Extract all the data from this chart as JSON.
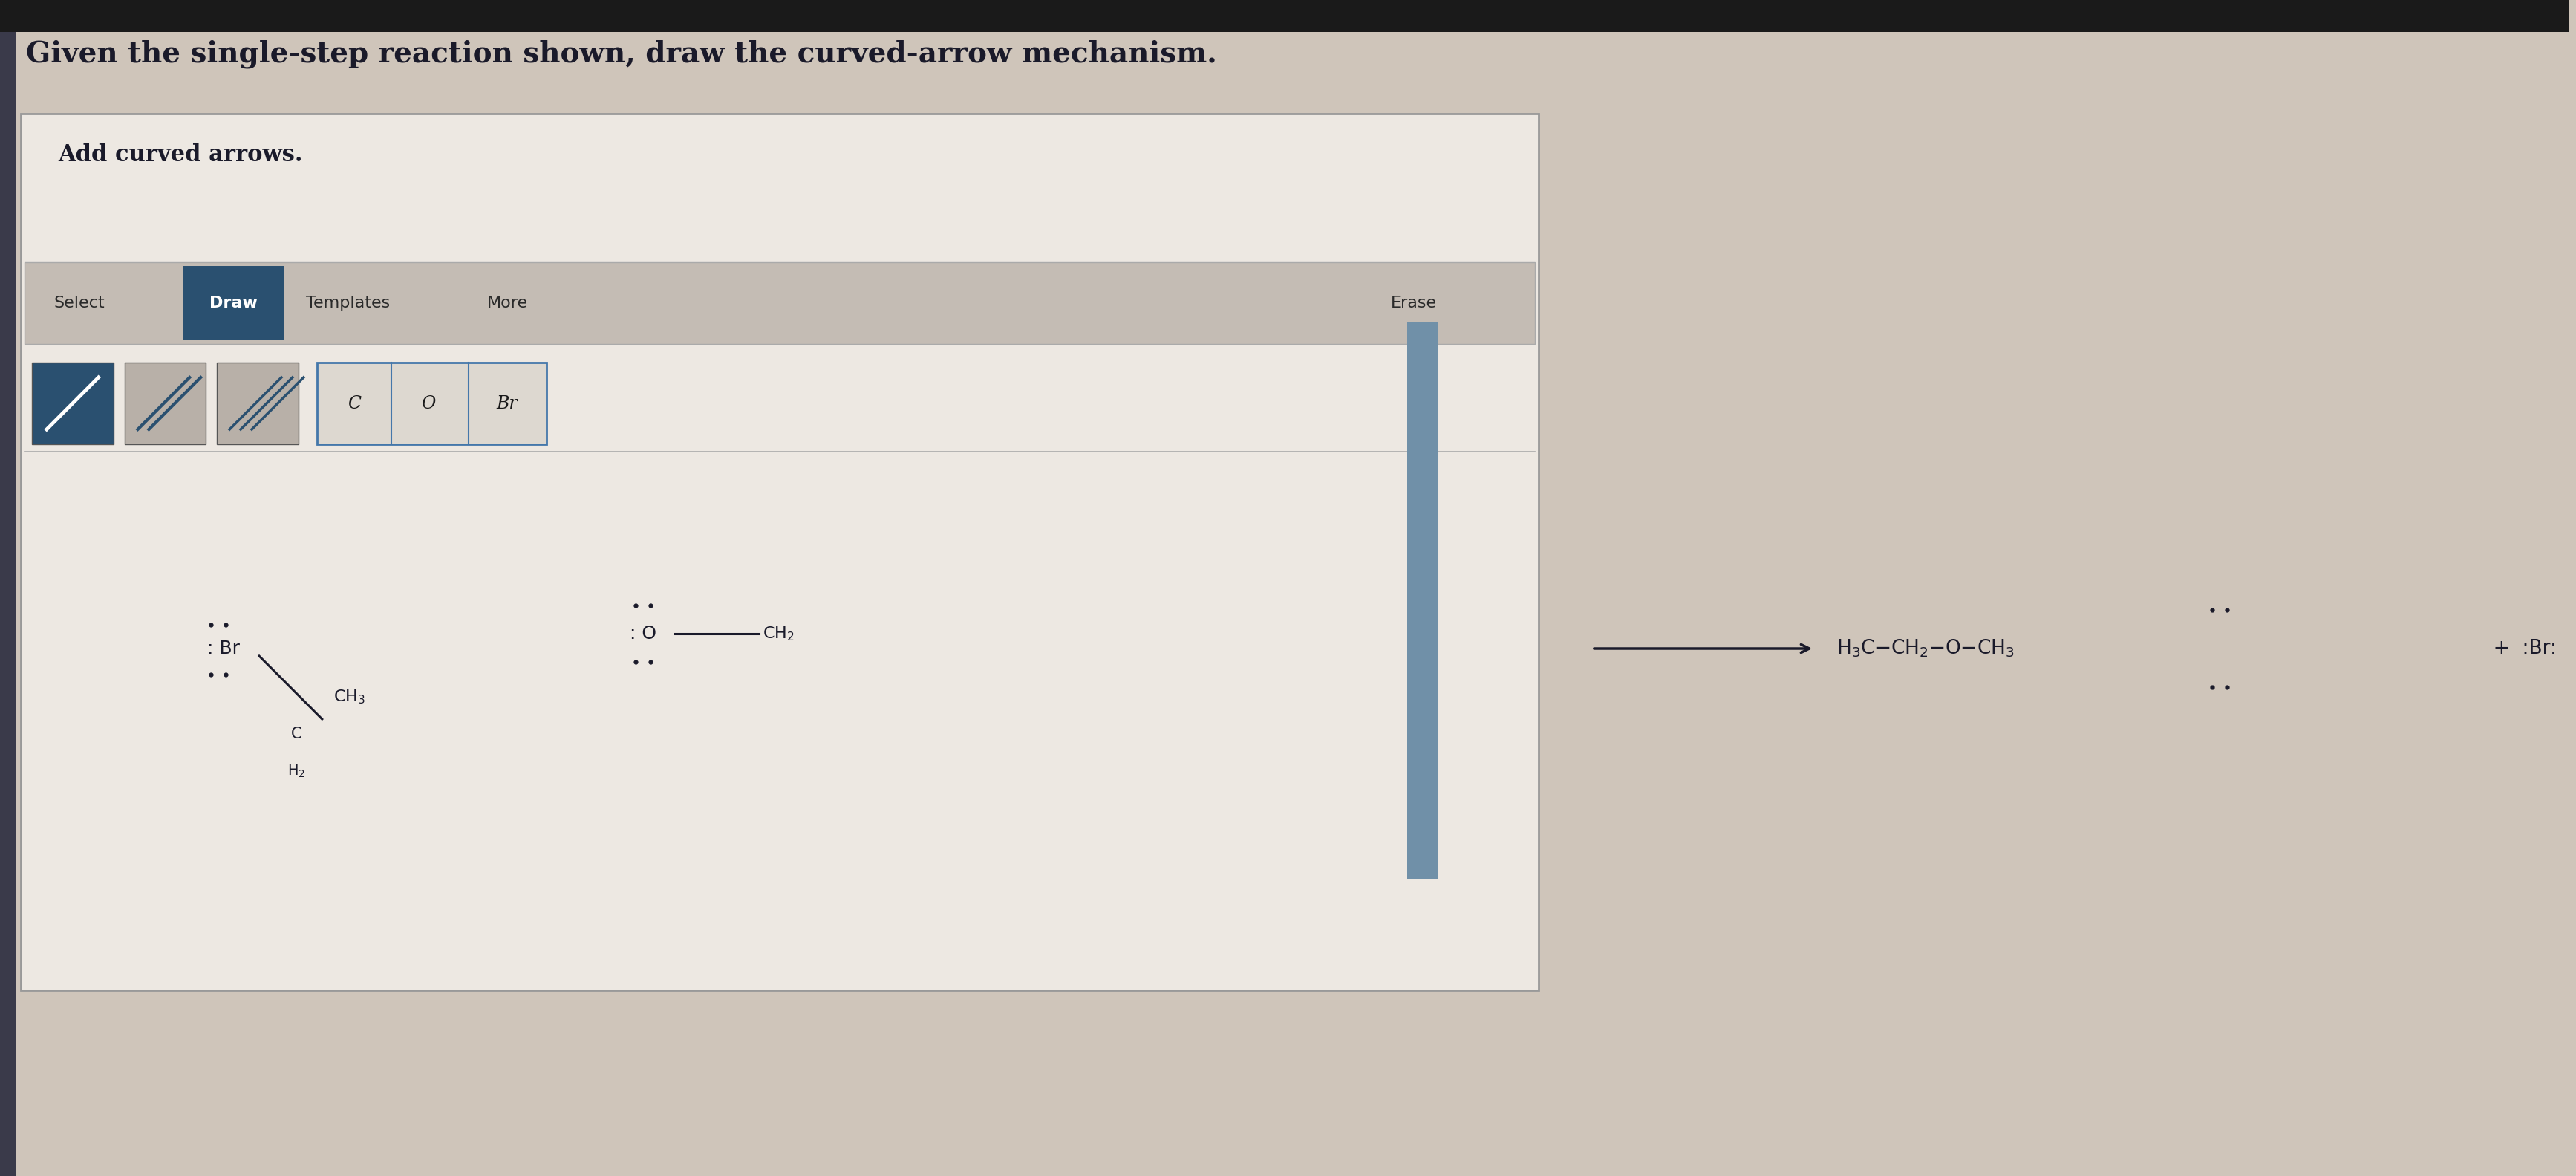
{
  "bg_color": "#cfc5ba",
  "top_bar_color": "#1a1a1a",
  "title_text": "Given the single-step reaction shown, draw the curved-arrow mechanism.",
  "title_fontsize": 28,
  "title_color": "#1a1a2a",
  "box_bg": "#ede8e2",
  "box_bg2": "#e4ddd6",
  "box_border": "#999999",
  "add_curved_text": "Add curved arrows.",
  "toolbar_bg": "#c4bcb4",
  "draw_btn_bg": "#2a5070",
  "draw_btn_text": "#ffffff",
  "btn_text_color": "#2a2a2a",
  "icon_btn_bg": "#2a5070",
  "atom_btn_border": "#4477aa",
  "erase_text": "Erase",
  "divider_bar_color": "#7a9aaa",
  "dark_text": "#1a1a2a",
  "left_bar_color": "#3a3a4a"
}
